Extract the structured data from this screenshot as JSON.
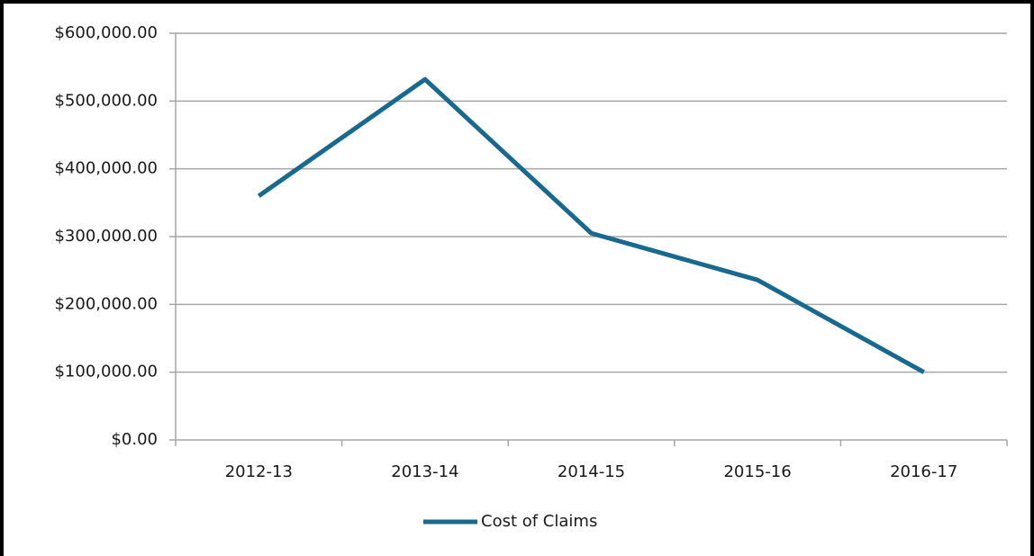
{
  "chart_data": {
    "type": "line",
    "categories": [
      "2012-13",
      "2013-14",
      "2014-15",
      "2015-16",
      "2016-17"
    ],
    "series": [
      {
        "name": "Cost of Claims",
        "color": "#17698f",
        "values": [
          360000,
          532000,
          305000,
          236000,
          100000
        ]
      }
    ],
    "ylim": [
      0,
      600000
    ],
    "yticks": [
      {
        "value": 0,
        "label": "$0.00"
      },
      {
        "value": 100000,
        "label": "$100,000.00"
      },
      {
        "value": 200000,
        "label": "$200,000.00"
      },
      {
        "value": 300000,
        "label": "$300,000.00"
      },
      {
        "value": 400000,
        "label": "$400,000.00"
      },
      {
        "value": 500000,
        "label": "$500,000.00"
      },
      {
        "value": 600000,
        "label": "$600,000.00"
      }
    ],
    "grid": true,
    "legend": "bottom"
  }
}
